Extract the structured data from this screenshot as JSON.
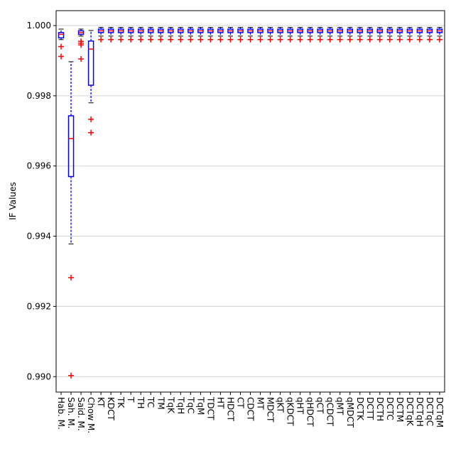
{
  "chart_data": {
    "type": "box",
    "ylabel": "IF Values",
    "categories": [
      "Hab. M.",
      "Sah. M.",
      "Said. M.",
      "Chow M.",
      "KT",
      "KDCT",
      "TK",
      "T",
      "TH",
      "TC",
      "TM",
      "TqK",
      "TqH",
      "TqC",
      "TqM",
      "TDCT",
      "HT",
      "HDCT",
      "CT",
      "CDCT",
      "MT",
      "MDCT",
      "qKT",
      "qKDCT",
      "qHT",
      "qHDCT",
      "qCT",
      "qCDCT",
      "qMT",
      "qMDCT",
      "DCTK",
      "DCTT",
      "DCTH",
      "DCTC",
      "DCTM",
      "DCTqK",
      "DCTqH",
      "DCTqC",
      "DCTqM"
    ],
    "boxes": [
      {
        "low": 0.9996,
        "q1": 0.99965,
        "median": 0.99975,
        "q3": 0.9998,
        "high": 0.9999,
        "outliers": [
          0.9994,
          0.99912
        ]
      },
      {
        "low": 0.99378,
        "q1": 0.9957,
        "median": 0.99678,
        "q3": 0.99743,
        "high": 0.99897,
        "outliers": [
          0.99282,
          0.99003
        ]
      },
      {
        "low": 0.9997,
        "q1": 0.99975,
        "median": 0.9998,
        "q3": 0.99985,
        "high": 0.9999,
        "outliers": [
          0.99955,
          0.9995,
          0.99945,
          0.99905
        ]
      },
      {
        "low": 0.9978,
        "q1": 0.9983,
        "median": 0.99933,
        "q3": 0.99956,
        "high": 0.99986,
        "outliers": [
          0.99733,
          0.99695
        ]
      },
      {
        "low": 0.9997,
        "q1": 0.9998,
        "median": 0.99985,
        "q3": 0.9999,
        "high": 0.99995,
        "outliers": [
          0.9996
        ]
      },
      {
        "low": 0.9997,
        "q1": 0.9998,
        "median": 0.99985,
        "q3": 0.9999,
        "high": 0.99995,
        "outliers": [
          0.9996
        ]
      },
      {
        "low": 0.9997,
        "q1": 0.9998,
        "median": 0.99985,
        "q3": 0.9999,
        "high": 0.99995,
        "outliers": [
          0.9996
        ]
      },
      {
        "low": 0.9997,
        "q1": 0.9998,
        "median": 0.99985,
        "q3": 0.9999,
        "high": 0.99995,
        "outliers": [
          0.9996
        ]
      },
      {
        "low": 0.9997,
        "q1": 0.9998,
        "median": 0.99985,
        "q3": 0.9999,
        "high": 0.99995,
        "outliers": [
          0.9996
        ]
      },
      {
        "low": 0.9997,
        "q1": 0.9998,
        "median": 0.99985,
        "q3": 0.9999,
        "high": 0.99995,
        "outliers": [
          0.9996
        ]
      },
      {
        "low": 0.9997,
        "q1": 0.9998,
        "median": 0.99985,
        "q3": 0.9999,
        "high": 0.99995,
        "outliers": [
          0.9996
        ]
      },
      {
        "low": 0.9997,
        "q1": 0.9998,
        "median": 0.99985,
        "q3": 0.9999,
        "high": 0.99995,
        "outliers": [
          0.9996
        ]
      },
      {
        "low": 0.9997,
        "q1": 0.9998,
        "median": 0.99985,
        "q3": 0.9999,
        "high": 0.99995,
        "outliers": [
          0.9996
        ]
      },
      {
        "low": 0.9997,
        "q1": 0.9998,
        "median": 0.99985,
        "q3": 0.9999,
        "high": 0.99995,
        "outliers": [
          0.9996
        ]
      },
      {
        "low": 0.9997,
        "q1": 0.9998,
        "median": 0.99985,
        "q3": 0.9999,
        "high": 0.99995,
        "outliers": [
          0.9996
        ]
      },
      {
        "low": 0.9997,
        "q1": 0.9998,
        "median": 0.99985,
        "q3": 0.9999,
        "high": 0.99995,
        "outliers": [
          0.9996
        ]
      },
      {
        "low": 0.9997,
        "q1": 0.9998,
        "median": 0.99985,
        "q3": 0.9999,
        "high": 0.99995,
        "outliers": [
          0.9996
        ]
      },
      {
        "low": 0.9997,
        "q1": 0.9998,
        "median": 0.99985,
        "q3": 0.9999,
        "high": 0.99995,
        "outliers": [
          0.9996
        ]
      },
      {
        "low": 0.9997,
        "q1": 0.9998,
        "median": 0.99985,
        "q3": 0.9999,
        "high": 0.99995,
        "outliers": [
          0.9996
        ]
      },
      {
        "low": 0.9997,
        "q1": 0.9998,
        "median": 0.99985,
        "q3": 0.9999,
        "high": 0.99995,
        "outliers": [
          0.9996
        ]
      },
      {
        "low": 0.9997,
        "q1": 0.9998,
        "median": 0.99985,
        "q3": 0.9999,
        "high": 0.99995,
        "outliers": [
          0.9996
        ]
      },
      {
        "low": 0.9997,
        "q1": 0.9998,
        "median": 0.99985,
        "q3": 0.9999,
        "high": 0.99995,
        "outliers": [
          0.9996
        ]
      },
      {
        "low": 0.9997,
        "q1": 0.9998,
        "median": 0.99985,
        "q3": 0.9999,
        "high": 0.99995,
        "outliers": [
          0.9996
        ]
      },
      {
        "low": 0.9997,
        "q1": 0.9998,
        "median": 0.99985,
        "q3": 0.9999,
        "high": 0.99995,
        "outliers": [
          0.9996
        ]
      },
      {
        "low": 0.9997,
        "q1": 0.9998,
        "median": 0.99985,
        "q3": 0.9999,
        "high": 0.99995,
        "outliers": [
          0.9996
        ]
      },
      {
        "low": 0.9997,
        "q1": 0.9998,
        "median": 0.99985,
        "q3": 0.9999,
        "high": 0.99995,
        "outliers": [
          0.9996
        ]
      },
      {
        "low": 0.9997,
        "q1": 0.9998,
        "median": 0.99985,
        "q3": 0.9999,
        "high": 0.99995,
        "outliers": [
          0.9996
        ]
      },
      {
        "low": 0.9997,
        "q1": 0.9998,
        "median": 0.99985,
        "q3": 0.9999,
        "high": 0.99995,
        "outliers": [
          0.9996
        ]
      },
      {
        "low": 0.9997,
        "q1": 0.9998,
        "median": 0.99985,
        "q3": 0.9999,
        "high": 0.99995,
        "outliers": [
          0.9996
        ]
      },
      {
        "low": 0.9997,
        "q1": 0.9998,
        "median": 0.99985,
        "q3": 0.9999,
        "high": 0.99995,
        "outliers": [
          0.9996
        ]
      },
      {
        "low": 0.9997,
        "q1": 0.9998,
        "median": 0.99985,
        "q3": 0.9999,
        "high": 0.99995,
        "outliers": [
          0.9996
        ]
      },
      {
        "low": 0.9997,
        "q1": 0.9998,
        "median": 0.99985,
        "q3": 0.9999,
        "high": 0.99995,
        "outliers": [
          0.9996
        ]
      },
      {
        "low": 0.9997,
        "q1": 0.9998,
        "median": 0.99985,
        "q3": 0.9999,
        "high": 0.99995,
        "outliers": [
          0.9996
        ]
      },
      {
        "low": 0.9997,
        "q1": 0.9998,
        "median": 0.99985,
        "q3": 0.9999,
        "high": 0.99995,
        "outliers": [
          0.9996
        ]
      },
      {
        "low": 0.9997,
        "q1": 0.9998,
        "median": 0.99985,
        "q3": 0.9999,
        "high": 0.99995,
        "outliers": [
          0.9996
        ]
      },
      {
        "low": 0.9997,
        "q1": 0.9998,
        "median": 0.99985,
        "q3": 0.9999,
        "high": 0.99995,
        "outliers": [
          0.9996
        ]
      },
      {
        "low": 0.9997,
        "q1": 0.9998,
        "median": 0.99985,
        "q3": 0.9999,
        "high": 0.99995,
        "outliers": [
          0.9996
        ]
      },
      {
        "low": 0.9997,
        "q1": 0.9998,
        "median": 0.99985,
        "q3": 0.9999,
        "high": 0.99995,
        "outliers": [
          0.9996
        ]
      },
      {
        "low": 0.9997,
        "q1": 0.9998,
        "median": 0.99985,
        "q3": 0.9999,
        "high": 0.99995,
        "outliers": [
          0.9996
        ]
      }
    ],
    "box_color": "#0000ff",
    "median_color": "#ff0000",
    "outlier_color": "#ff0000",
    "ylim": [
      0.98956,
      1.000425
    ],
    "yticks": [
      {
        "value": 0.99,
        "label": "0.990"
      },
      {
        "value": 0.992,
        "label": "0.992"
      },
      {
        "value": 0.994,
        "label": "0.994"
      },
      {
        "value": 0.996,
        "label": "0.996"
      },
      {
        "value": 0.998,
        "label": "0.998"
      },
      {
        "value": 1,
        "label": "1.000"
      }
    ],
    "grid": true
  }
}
